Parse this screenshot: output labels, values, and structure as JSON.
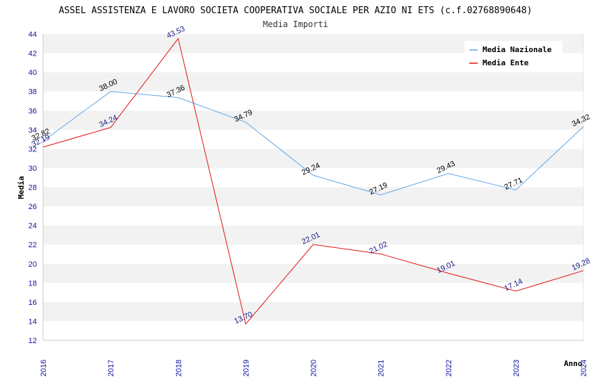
{
  "chart_data": {
    "type": "line",
    "title": "ASSEL ASSISTENZA E LAVORO SOCIETA COOPERATIVA SOCIALE PER AZIO NI ETS (c.f.02768890648)",
    "subtitle": "Media Importi",
    "xlabel": "Anno",
    "ylabel": "Media",
    "ylim": [
      12,
      44
    ],
    "y_ticks": [
      12,
      14,
      16,
      18,
      20,
      22,
      24,
      26,
      28,
      30,
      32,
      34,
      36,
      38,
      40,
      42,
      44
    ],
    "x": [
      "2016",
      "2017",
      "2018",
      "2019",
      "2020",
      "2021",
      "2022",
      "2023",
      "2024"
    ],
    "legend_position": "top-right",
    "series": [
      {
        "name": "Media Nazionale",
        "color": "#5fa8e8",
        "label_color": "#000000",
        "values": [
          32.82,
          38.0,
          37.36,
          34.79,
          29.24,
          27.19,
          29.43,
          27.71,
          34.32
        ],
        "labels": [
          "32.82",
          "38.00",
          "37.36",
          "34.79",
          "29.24",
          "27.19",
          "29.43",
          "27.71",
          "34.32"
        ]
      },
      {
        "name": "Media Ente",
        "color": "#e01010",
        "label_color": "#1a1a8c",
        "values": [
          32.19,
          34.24,
          43.53,
          13.7,
          22.01,
          21.02,
          19.01,
          17.14,
          19.28
        ],
        "labels": [
          "32.19",
          "34.24",
          "43.53",
          "13.70",
          "22.01",
          "21.02",
          "19.01",
          "17.14",
          "19.28"
        ]
      }
    ]
  }
}
